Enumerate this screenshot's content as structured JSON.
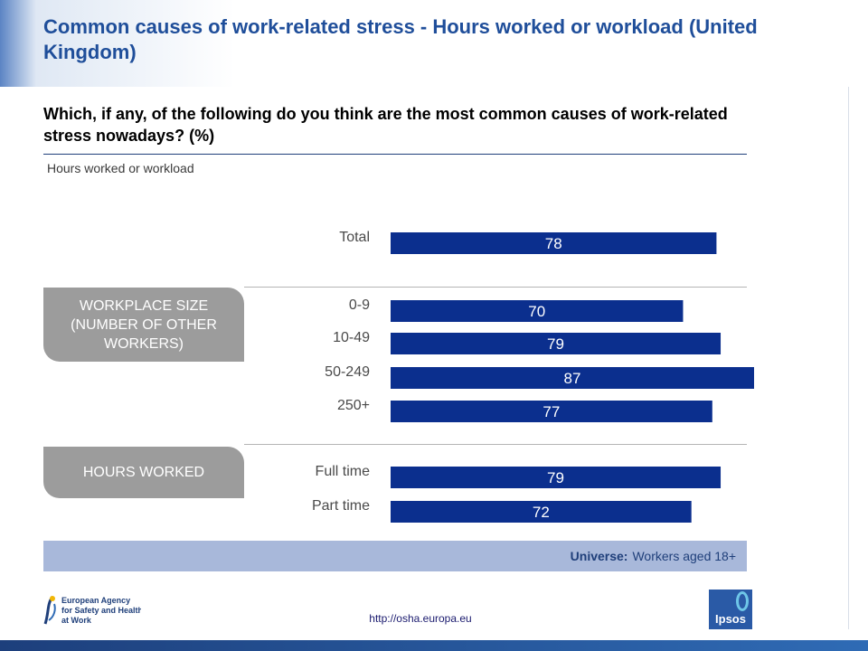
{
  "title": "Common causes of work-related stress - Hours worked or workload (United Kingdom)",
  "question": "Which, if any, of the following do you think are the most common causes of work-related stress nowadays? (%)",
  "subtitle": "Hours worked or workload",
  "groups": {
    "workplace": "WORKPLACE SIZE (NUMBER OF OTHER WORKERS)",
    "hours": "HOURS WORKED"
  },
  "universe": {
    "label": "Universe:",
    "text": "Workers aged 18+"
  },
  "footer": {
    "url": "http://osha.europa.eu",
    "osha_lines": [
      "European Agency",
      "for Safety and Health",
      "at Work"
    ],
    "ipsos": "Ipsos"
  },
  "colors": {
    "bar": "#0b2f8e",
    "title": "#1f4e9a",
    "group": "#9c9c9c"
  },
  "chart_data": {
    "type": "bar",
    "orientation": "horizontal",
    "categories": [
      "Total",
      "0-9",
      "10-49",
      "50-249",
      "250+",
      "Full time",
      "Part time"
    ],
    "values": [
      78,
      70,
      79,
      87,
      77,
      79,
      72
    ],
    "xlim": [
      0,
      87
    ]
  }
}
